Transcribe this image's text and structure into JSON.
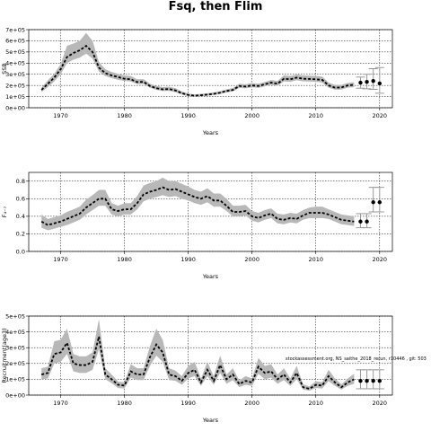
{
  "page": {
    "title": "Fsq, then Flim"
  },
  "annotation": "stockassessment.org, NS_saithe_2018_rerun, r10446 , git: 503",
  "chart_data": [
    {
      "type": "line",
      "xlabel": "Years",
      "ylabel": "SSB",
      "xlim": [
        1965,
        2022
      ],
      "ylim": [
        0,
        700000
      ],
      "xticks": [
        1970,
        1980,
        1990,
        2000,
        2010,
        2020
      ],
      "yticks": [
        0,
        100000,
        200000,
        300000,
        400000,
        500000,
        600000,
        700000
      ],
      "yticklabels": [
        "0e+00",
        "1e+05",
        "2e+05",
        "3e+05",
        "4e+05",
        "5e+05",
        "6e+05",
        "7e+05"
      ],
      "grid": true,
      "series": [
        {
          "x": [
            1967,
            1968,
            1969,
            1970,
            1971,
            1972,
            1973,
            1974,
            1975,
            1976,
            1977,
            1978,
            1979,
            1980,
            1981,
            1982,
            1983,
            1984,
            1985,
            1986,
            1987,
            1988,
            1989,
            1990,
            1991,
            1992,
            1993,
            1994,
            1995,
            1996,
            1997,
            1998,
            1999,
            2000,
            2001,
            2002,
            2003,
            2004,
            2005,
            2006,
            2007,
            2008,
            2009,
            2010,
            2011,
            2012,
            2013,
            2014,
            2015,
            2016
          ],
          "values": [
            160000,
            215000,
            270000,
            345000,
            455000,
            490000,
            515000,
            555000,
            500000,
            360000,
            310000,
            290000,
            275000,
            260000,
            255000,
            230000,
            232000,
            195000,
            175000,
            165000,
            168000,
            155000,
            130000,
            115000,
            108000,
            112000,
            118000,
            125000,
            135000,
            150000,
            160000,
            195000,
            190000,
            200000,
            195000,
            210000,
            225000,
            215000,
            260000,
            255000,
            270000,
            260000,
            258000,
            255000,
            250000,
            200000,
            180000,
            182000,
            200000,
            205000
          ],
          "lower": [
            140000,
            185000,
            235000,
            300000,
            400000,
            430000,
            450000,
            485000,
            440000,
            325000,
            285000,
            265000,
            250000,
            240000,
            235000,
            212000,
            213000,
            180000,
            160000,
            150000,
            152000,
            140000,
            118000,
            104000,
            98000,
            102000,
            108000,
            114000,
            123000,
            137000,
            147000,
            178000,
            174000,
            183000,
            178000,
            192000,
            205000,
            196000,
            236000,
            232000,
            246000,
            236000,
            235000,
            232000,
            226000,
            180000,
            162000,
            163000,
            180000,
            185000
          ],
          "upper": [
            180000,
            245000,
            305000,
            390000,
            555000,
            575000,
            600000,
            670000,
            600000,
            410000,
            345000,
            320000,
            305000,
            290000,
            285000,
            255000,
            256000,
            215000,
            195000,
            185000,
            188000,
            175000,
            145000,
            128000,
            120000,
            125000,
            130000,
            138000,
            148000,
            165000,
            176000,
            215000,
            210000,
            220000,
            215000,
            230000,
            248000,
            240000,
            290000,
            285000,
            298000,
            290000,
            288000,
            285000,
            280000,
            225000,
            205000,
            205000,
            222000,
            228000
          ]
        }
      ],
      "forecast": {
        "x": [
          2017,
          2018,
          2019,
          2020
        ],
        "values": [
          225000,
          232000,
          240000,
          218000
        ],
        "lower": [
          175000,
          170000,
          165000,
          130000
        ],
        "upper": [
          275000,
          300000,
          350000,
          360000
        ]
      }
    },
    {
      "type": "line",
      "xlabel": "Years",
      "ylabel": "F₄₋₇",
      "xlim": [
        1965,
        2022
      ],
      "ylim": [
        0,
        0.9
      ],
      "xticks": [
        1970,
        1980,
        1990,
        2000,
        2010,
        2020
      ],
      "yticks": [
        0,
        0.2,
        0.4,
        0.6,
        0.8
      ],
      "yticklabels": [
        "0.0",
        "0.2",
        "0.4",
        "0.6",
        "0.8"
      ],
      "grid": true,
      "series": [
        {
          "x": [
            1967,
            1968,
            1969,
            1970,
            1971,
            1972,
            1973,
            1974,
            1975,
            1976,
            1977,
            1978,
            1979,
            1980,
            1981,
            1982,
            1983,
            1984,
            1985,
            1986,
            1987,
            1988,
            1989,
            1990,
            1991,
            1992,
            1993,
            1994,
            1995,
            1996,
            1997,
            1998,
            1999,
            2000,
            2001,
            2002,
            2003,
            2004,
            2005,
            2006,
            2007,
            2008,
            2009,
            2010,
            2011,
            2012,
            2013,
            2014,
            2015,
            2016
          ],
          "values": [
            0.34,
            0.3,
            0.32,
            0.34,
            0.37,
            0.4,
            0.43,
            0.5,
            0.55,
            0.6,
            0.6,
            0.48,
            0.46,
            0.48,
            0.48,
            0.55,
            0.65,
            0.68,
            0.7,
            0.73,
            0.7,
            0.71,
            0.68,
            0.65,
            0.62,
            0.6,
            0.63,
            0.58,
            0.58,
            0.52,
            0.45,
            0.45,
            0.46,
            0.4,
            0.38,
            0.41,
            0.43,
            0.37,
            0.36,
            0.38,
            0.37,
            0.41,
            0.44,
            0.44,
            0.44,
            0.42,
            0.39,
            0.36,
            0.35,
            0.34
          ],
          "lower": [
            0.27,
            0.24,
            0.26,
            0.28,
            0.3,
            0.33,
            0.36,
            0.42,
            0.47,
            0.52,
            0.52,
            0.42,
            0.4,
            0.42,
            0.42,
            0.48,
            0.57,
            0.6,
            0.62,
            0.64,
            0.62,
            0.63,
            0.6,
            0.58,
            0.55,
            0.53,
            0.56,
            0.51,
            0.51,
            0.46,
            0.4,
            0.4,
            0.41,
            0.35,
            0.33,
            0.36,
            0.38,
            0.32,
            0.31,
            0.33,
            0.32,
            0.36,
            0.38,
            0.38,
            0.38,
            0.37,
            0.34,
            0.31,
            0.3,
            0.29
          ],
          "upper": [
            0.42,
            0.37,
            0.39,
            0.41,
            0.45,
            0.48,
            0.51,
            0.59,
            0.64,
            0.7,
            0.7,
            0.55,
            0.52,
            0.55,
            0.55,
            0.63,
            0.75,
            0.78,
            0.8,
            0.84,
            0.8,
            0.8,
            0.77,
            0.74,
            0.7,
            0.68,
            0.72,
            0.66,
            0.66,
            0.6,
            0.52,
            0.52,
            0.53,
            0.46,
            0.44,
            0.47,
            0.49,
            0.43,
            0.42,
            0.44,
            0.43,
            0.47,
            0.5,
            0.51,
            0.51,
            0.48,
            0.45,
            0.42,
            0.41,
            0.4
          ]
        }
      ],
      "forecast": {
        "x": [
          2017,
          2018,
          2019,
          2020
        ],
        "values": [
          0.34,
          0.34,
          0.56,
          0.56
        ],
        "lower": [
          0.27,
          0.27,
          0.45,
          0.45
        ],
        "upper": [
          0.43,
          0.43,
          0.73,
          0.73
        ]
      }
    },
    {
      "type": "line",
      "xlabel": "Years",
      "ylabel": "Recruitment(age3)",
      "xlim": [
        1965,
        2022
      ],
      "ylim": [
        0,
        500000
      ],
      "xticks": [
        1970,
        1980,
        1990,
        2000,
        2010,
        2020
      ],
      "yticks": [
        0,
        100000,
        200000,
        300000,
        400000,
        500000
      ],
      "yticklabels": [
        "0e+00",
        "1e+05",
        "2e+05",
        "3e+05",
        "4e+05",
        "5e+05"
      ],
      "grid": true,
      "series": [
        {
          "x": [
            1967,
            1968,
            1969,
            1970,
            1971,
            1972,
            1973,
            1974,
            1975,
            1976,
            1977,
            1978,
            1979,
            1980,
            1981,
            1982,
            1983,
            1984,
            1985,
            1986,
            1987,
            1988,
            1989,
            1990,
            1991,
            1992,
            1993,
            1994,
            1995,
            1996,
            1997,
            1998,
            1999,
            2000,
            2001,
            2002,
            2003,
            2004,
            2005,
            2006,
            2007,
            2008,
            2009,
            2010,
            2011,
            2012,
            2013,
            2014,
            2015,
            2016
          ],
          "values": [
            130000,
            140000,
            260000,
            270000,
            330000,
            200000,
            190000,
            190000,
            210000,
            370000,
            130000,
            100000,
            65000,
            60000,
            150000,
            130000,
            130000,
            240000,
            320000,
            270000,
            130000,
            120000,
            90000,
            140000,
            160000,
            80000,
            160000,
            90000,
            190000,
            100000,
            130000,
            70000,
            90000,
            80000,
            180000,
            140000,
            150000,
            100000,
            130000,
            80000,
            140000,
            50000,
            40000,
            65000,
            60000,
            120000,
            80000,
            50000,
            80000,
            100000
          ],
          "lower": [
            100000,
            105000,
            200000,
            210000,
            260000,
            150000,
            140000,
            140000,
            160000,
            290000,
            100000,
            75000,
            45000,
            42000,
            110000,
            95000,
            95000,
            185000,
            250000,
            210000,
            95000,
            90000,
            65000,
            105000,
            120000,
            58000,
            120000,
            65000,
            140000,
            72000,
            95000,
            50000,
            65000,
            58000,
            135000,
            100000,
            110000,
            72000,
            95000,
            58000,
            100000,
            35000,
            28000,
            45000,
            42000,
            88000,
            58000,
            35000,
            58000,
            72000
          ],
          "upper": [
            170000,
            180000,
            340000,
            350000,
            420000,
            260000,
            245000,
            245000,
            270000,
            480000,
            170000,
            130000,
            85000,
            80000,
            195000,
            170000,
            170000,
            310000,
            420000,
            350000,
            170000,
            155000,
            120000,
            185000,
            210000,
            105000,
            210000,
            120000,
            250000,
            130000,
            170000,
            92000,
            120000,
            105000,
            235000,
            185000,
            195000,
            130000,
            170000,
            105000,
            185000,
            68000,
            55000,
            88000,
            82000,
            160000,
            105000,
            68000,
            105000,
            135000
          ]
        }
      ],
      "forecast": {
        "x": [
          2017,
          2018,
          2019,
          2020
        ],
        "values": [
          90000,
          90000,
          90000,
          90000
        ],
        "lower": [
          40000,
          40000,
          40000,
          40000
        ],
        "upper": [
          160000,
          160000,
          160000,
          160000
        ]
      }
    }
  ]
}
